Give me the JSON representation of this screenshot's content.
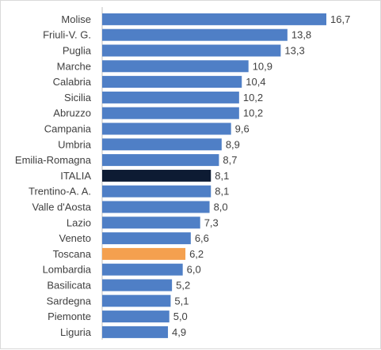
{
  "chart_data": {
    "type": "bar",
    "orientation": "horizontal",
    "categories": [
      "Molise",
      "Friuli-V. G.",
      "Puglia",
      "Marche",
      "Calabria",
      "Sicilia",
      "Abruzzo",
      "Campania",
      "Umbria",
      "Emilia-Romagna",
      "ITALIA",
      "Trentino-A. A.",
      "Valle d'Aosta",
      "Lazio",
      "Veneto",
      "Toscana",
      "Lombardia",
      "Basilicata",
      "Sardegna",
      "Piemonte",
      "Liguria"
    ],
    "values": [
      16.7,
      13.8,
      13.3,
      10.9,
      10.4,
      10.2,
      10.2,
      9.6,
      8.9,
      8.7,
      8.1,
      8.1,
      8.0,
      7.3,
      6.6,
      6.2,
      6.0,
      5.2,
      5.1,
      5.0,
      4.9
    ],
    "value_labels": [
      "16,7",
      "13,8",
      "13,3",
      "10,9",
      "10,4",
      "10,2",
      "10,2",
      "9,6",
      "8,9",
      "8,7",
      "8,1",
      "8,1",
      "8,0",
      "7,3",
      "6,6",
      "6,2",
      "6,0",
      "5,2",
      "5,1",
      "5,0",
      "4,9"
    ],
    "bar_colors": [
      "#4f7fc6",
      "#4f7fc6",
      "#4f7fc6",
      "#4f7fc6",
      "#4f7fc6",
      "#4f7fc6",
      "#4f7fc6",
      "#4f7fc6",
      "#4f7fc6",
      "#4f7fc6",
      "#0d1b33",
      "#4f7fc6",
      "#4f7fc6",
      "#4f7fc6",
      "#4f7fc6",
      "#f4a04f",
      "#4f7fc6",
      "#4f7fc6",
      "#4f7fc6",
      "#4f7fc6",
      "#4f7fc6"
    ],
    "xlim": [
      0,
      16.7
    ],
    "axis_line_color": "#bfbfbf",
    "grid": false,
    "legend": false
  }
}
